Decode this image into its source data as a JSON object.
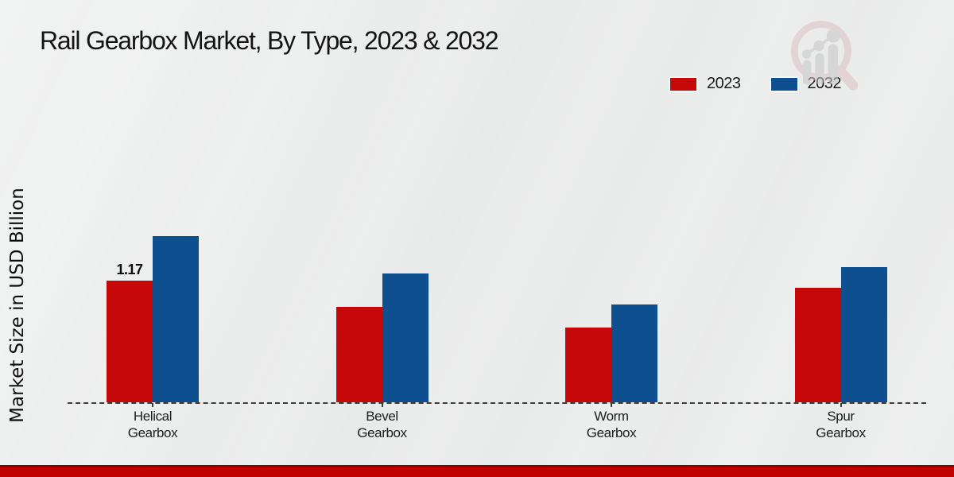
{
  "chart_data": {
    "type": "bar",
    "title": "Rail Gearbox Market, By Type, 2023 & 2032",
    "ylabel": "Market Size in USD Billion",
    "categories": [
      "Helical\nGearbox",
      "Bevel\nGearbox",
      "Worm\nGearbox",
      "Spur\nGearbox"
    ],
    "series": [
      {
        "name": "2023",
        "color": "#c70808",
        "values": [
          1.17,
          0.92,
          0.72,
          1.1
        ],
        "data_labels": [
          "1.17",
          "",
          "",
          ""
        ]
      },
      {
        "name": "2032",
        "color": "#0e4f90",
        "values": [
          1.6,
          1.24,
          0.94,
          1.3
        ],
        "data_labels": [
          "",
          "",
          "",
          ""
        ]
      }
    ],
    "ylim": [
      0,
      1.75
    ],
    "grid": false,
    "legend_position": "top-right",
    "baseline_style": "dashed",
    "yaxis_ticks_visible": false,
    "bottom_bar_color": "#c10000"
  },
  "logo": {
    "icon": "magnifier-bar-chart-logo"
  }
}
